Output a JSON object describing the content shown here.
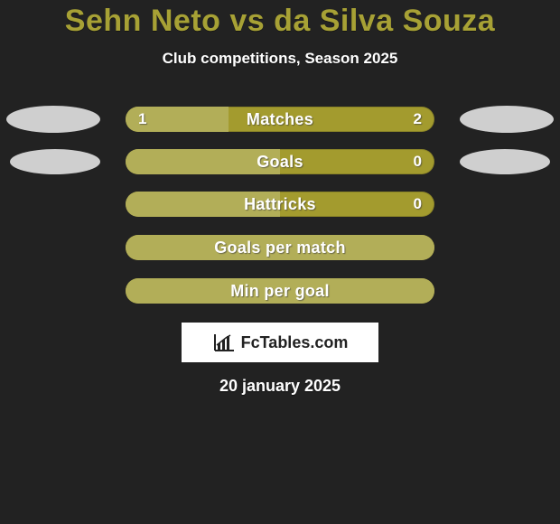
{
  "title": "Sehn Neto vs da Silva Souza",
  "subtitle": "Club competitions, Season 2025",
  "date": "20 january 2025",
  "logo_text": "FcTables.com",
  "colors": {
    "background": "#222222",
    "title": "#a7a135",
    "text": "#ffffff",
    "bar_base": "#a39b2e",
    "bar_fill": "#b2ae58",
    "ellipse": "#cfcfcf",
    "logo_bg": "#ffffff",
    "logo_text": "#222222"
  },
  "rows": [
    {
      "label": "Matches",
      "left": "1",
      "right": "2",
      "left_pct": 33.3,
      "show_ellipses": true,
      "ellipse_size": "normal"
    },
    {
      "label": "Goals",
      "left": "",
      "right": "0",
      "left_pct": 50,
      "show_ellipses": true,
      "ellipse_size": "small"
    },
    {
      "label": "Hattricks",
      "left": "",
      "right": "0",
      "left_pct": 50,
      "show_ellipses": false
    },
    {
      "label": "Goals per match",
      "left": "",
      "right": "",
      "left_pct": 100,
      "show_ellipses": false
    },
    {
      "label": "Min per goal",
      "left": "",
      "right": "",
      "left_pct": 100,
      "show_ellipses": false
    }
  ]
}
